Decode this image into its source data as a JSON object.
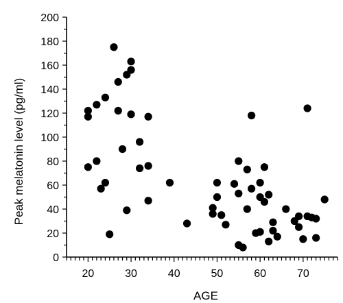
{
  "chart_data": {
    "type": "scatter",
    "title": "",
    "xlabel": "AGE",
    "ylabel": "Peak melatonin level (pg/ml)",
    "xlim": [
      15,
      78
    ],
    "ylim": [
      0,
      200
    ],
    "x_ticks": [
      20,
      30,
      40,
      50,
      60,
      70
    ],
    "y_ticks": [
      0,
      20,
      40,
      60,
      80,
      100,
      120,
      140,
      160,
      180,
      200
    ],
    "grid": false,
    "legend": "none",
    "marker_color": "#000000",
    "series": [
      {
        "points": [
          [
            20,
            122
          ],
          [
            20,
            117
          ],
          [
            20,
            75
          ],
          [
            22,
            127
          ],
          [
            22,
            80
          ],
          [
            23,
            57
          ],
          [
            24,
            133
          ],
          [
            24,
            62
          ],
          [
            25,
            19
          ],
          [
            26,
            175
          ],
          [
            27,
            146
          ],
          [
            27,
            122
          ],
          [
            28,
            90
          ],
          [
            29,
            152
          ],
          [
            29,
            39
          ],
          [
            30,
            163
          ],
          [
            30,
            156
          ],
          [
            30,
            119
          ],
          [
            32,
            96
          ],
          [
            32,
            74
          ],
          [
            34,
            117
          ],
          [
            34,
            76
          ],
          [
            34,
            47
          ],
          [
            39,
            62
          ],
          [
            43,
            28
          ],
          [
            49,
            41
          ],
          [
            49,
            36
          ],
          [
            50,
            62
          ],
          [
            50,
            50
          ],
          [
            51,
            35
          ],
          [
            52,
            27
          ],
          [
            54,
            61
          ],
          [
            55,
            80
          ],
          [
            55,
            53
          ],
          [
            55,
            10
          ],
          [
            56,
            8
          ],
          [
            57,
            73
          ],
          [
            57,
            40
          ],
          [
            58,
            118
          ],
          [
            58,
            57
          ],
          [
            59,
            20
          ],
          [
            60,
            62
          ],
          [
            60,
            50
          ],
          [
            60,
            21
          ],
          [
            61,
            75
          ],
          [
            61,
            46
          ],
          [
            62,
            52
          ],
          [
            62,
            13
          ],
          [
            63,
            29
          ],
          [
            63,
            22
          ],
          [
            64,
            17
          ],
          [
            66,
            40
          ],
          [
            68,
            30
          ],
          [
            69,
            34
          ],
          [
            69,
            25
          ],
          [
            70,
            15
          ],
          [
            71,
            124
          ],
          [
            71,
            34
          ],
          [
            72,
            33
          ],
          [
            73,
            32
          ],
          [
            73,
            16
          ],
          [
            75,
            48
          ]
        ]
      }
    ]
  }
}
